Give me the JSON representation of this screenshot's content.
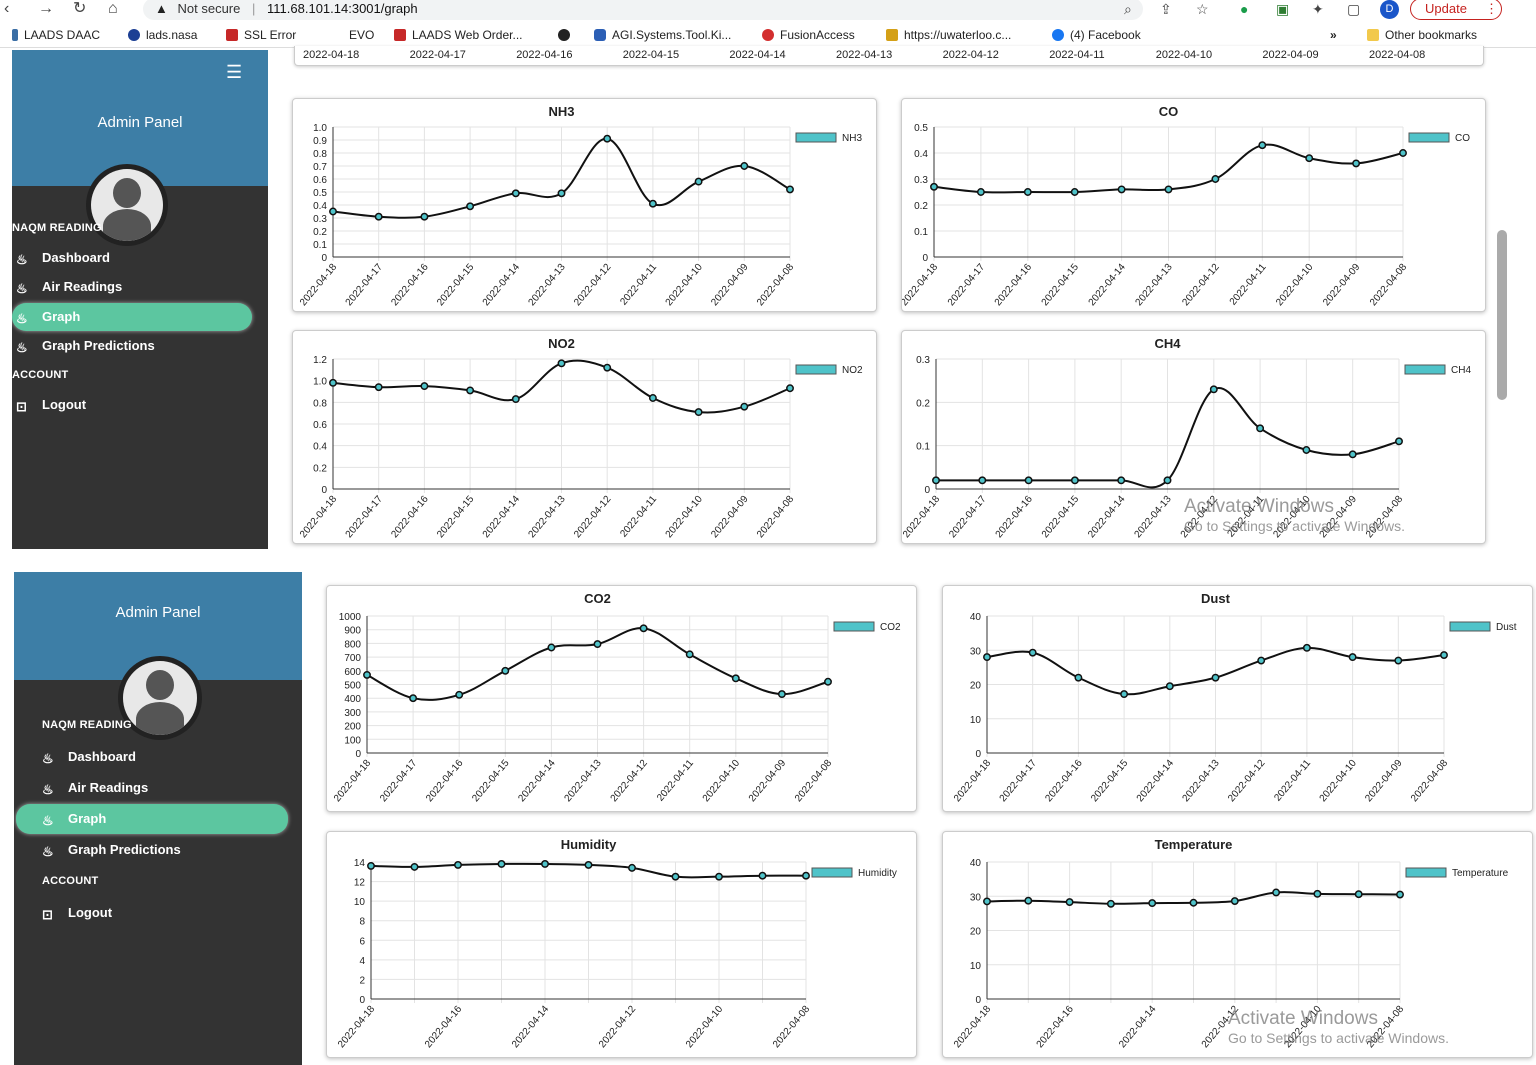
{
  "browser": {
    "security_label": "Not secure",
    "url": "111.68.101.14:3001/graph",
    "update_label": "Update",
    "profile_initial": "D",
    "bookmarks": [
      "LAADS DAAC",
      "lads.nasa",
      "SSL Error",
      "EVO",
      "LAADS Web Order...",
      "AGI.Systems.Tool.Ki...",
      "FusionAccess",
      "https://uwaterloo.c...",
      "(4) Facebook"
    ],
    "other_bookmarks": "Other bookmarks",
    "more_bookmarks": "»"
  },
  "sidebar": {
    "title": "Admin Panel",
    "section_naqm": "NAQM READING",
    "section_account": "ACCOUNT",
    "items": [
      "Dashboard",
      "Air Readings",
      "Graph",
      "Graph Predictions"
    ],
    "logout": "Logout",
    "active": "Graph"
  },
  "top_strip_dates": [
    "2022-04-18",
    "2022-04-17",
    "2022-04-16",
    "2022-04-15",
    "2022-04-14",
    "2022-04-13",
    "2022-04-12",
    "2022-04-11",
    "2022-04-10",
    "2022-04-09",
    "2022-04-08"
  ],
  "watermark": {
    "line1": "Activate Windows",
    "line2": "Go to Settings to activate Windows."
  },
  "colors": {
    "sidebar_bg": "#333333",
    "sidebar_header": "#3d7ea6",
    "active_pill": "#5cc6a0",
    "legend_swatch": "#4fc3c9"
  },
  "chart_data": [
    {
      "type": "line",
      "title": "NH3",
      "categories": [
        "2022-04-18",
        "2022-04-17",
        "2022-04-16",
        "2022-04-15",
        "2022-04-14",
        "2022-04-13",
        "2022-04-12",
        "2022-04-11",
        "2022-04-10",
        "2022-04-09",
        "2022-04-08"
      ],
      "series": [
        {
          "name": "NH3",
          "values": [
            0.35,
            0.31,
            0.31,
            0.39,
            0.49,
            0.49,
            0.91,
            0.41,
            0.58,
            0.7,
            0.52
          ]
        }
      ],
      "ylim": [
        0,
        1.0
      ],
      "yticks": [
        "0",
        "0.1",
        "0.2",
        "0.3",
        "0.4",
        "0.5",
        "0.6",
        "0.7",
        "0.8",
        "0.9",
        "1.0"
      ],
      "grid": true,
      "legend": "top-right"
    },
    {
      "type": "line",
      "title": "CO",
      "categories": [
        "2022-04-18",
        "2022-04-17",
        "2022-04-16",
        "2022-04-15",
        "2022-04-14",
        "2022-04-13",
        "2022-04-12",
        "2022-04-11",
        "2022-04-10",
        "2022-04-09",
        "2022-04-08"
      ],
      "series": [
        {
          "name": "CO",
          "values": [
            0.27,
            0.25,
            0.25,
            0.25,
            0.26,
            0.26,
            0.3,
            0.43,
            0.38,
            0.36,
            0.4
          ]
        }
      ],
      "ylim": [
        0,
        0.5
      ],
      "yticks": [
        "0",
        "0.1",
        "0.2",
        "0.3",
        "0.4",
        "0.5"
      ],
      "grid": true,
      "legend": "top-right"
    },
    {
      "type": "line",
      "title": "NO2",
      "categories": [
        "2022-04-18",
        "2022-04-17",
        "2022-04-16",
        "2022-04-15",
        "2022-04-14",
        "2022-04-13",
        "2022-04-12",
        "2022-04-11",
        "2022-04-10",
        "2022-04-09",
        "2022-04-08"
      ],
      "series": [
        {
          "name": "NO2",
          "values": [
            0.98,
            0.94,
            0.95,
            0.91,
            0.83,
            1.16,
            1.12,
            0.84,
            0.71,
            0.76,
            0.93
          ]
        }
      ],
      "ylim": [
        0,
        1.2
      ],
      "yticks": [
        "0",
        "0.2",
        "0.4",
        "0.6",
        "0.8",
        "1.0",
        "1.2"
      ],
      "grid": true,
      "legend": "top-right"
    },
    {
      "type": "line",
      "title": "CH4",
      "categories": [
        "2022-04-18",
        "2022-04-17",
        "2022-04-16",
        "2022-04-15",
        "2022-04-14",
        "2022-04-13",
        "2022-04-12",
        "2022-04-11",
        "2022-04-10",
        "2022-04-09",
        "2022-04-08"
      ],
      "series": [
        {
          "name": "CH4",
          "values": [
            0.02,
            0.02,
            0.02,
            0.02,
            0.02,
            0.02,
            0.23,
            0.14,
            0.09,
            0.08,
            0.11
          ]
        }
      ],
      "ylim": [
        0,
        0.3
      ],
      "yticks": [
        "0",
        "0.1",
        "0.2",
        "0.3"
      ],
      "grid": true,
      "legend": "top-right"
    },
    {
      "type": "line",
      "title": "CO2",
      "categories": [
        "2022-04-18",
        "2022-04-17",
        "2022-04-16",
        "2022-04-15",
        "2022-04-14",
        "2022-04-13",
        "2022-04-12",
        "2022-04-11",
        "2022-04-10",
        "2022-04-09",
        "2022-04-08"
      ],
      "series": [
        {
          "name": "CO2",
          "values": [
            570,
            400,
            425,
            600,
            770,
            795,
            910,
            720,
            545,
            430,
            520
          ]
        }
      ],
      "ylim": [
        0,
        1000
      ],
      "yticks": [
        "0",
        "100",
        "200",
        "300",
        "400",
        "500",
        "600",
        "700",
        "800",
        "900",
        "1000"
      ],
      "grid": true,
      "legend": "top-right"
    },
    {
      "type": "line",
      "title": "Dust",
      "categories": [
        "2022-04-18",
        "2022-04-17",
        "2022-04-16",
        "2022-04-15",
        "2022-04-14",
        "2022-04-13",
        "2022-04-12",
        "2022-04-11",
        "2022-04-10",
        "2022-04-09",
        "2022-04-08"
      ],
      "series": [
        {
          "name": "Dust",
          "values": [
            28,
            29.3,
            22,
            17.2,
            19.5,
            22,
            27,
            30.7,
            28,
            27,
            28.6
          ]
        }
      ],
      "ylim": [
        0,
        40
      ],
      "yticks": [
        "0",
        "10",
        "20",
        "30",
        "40"
      ],
      "grid": true,
      "legend": "top-right"
    },
    {
      "type": "line",
      "title": "Humidity",
      "categories": [
        "2022-04-18",
        "",
        "2022-04-16",
        "",
        "2022-04-14",
        "",
        "2022-04-12",
        "",
        "2022-04-10",
        "",
        "2022-04-08"
      ],
      "series": [
        {
          "name": "Humidity",
          "values": [
            13.6,
            13.5,
            13.7,
            13.8,
            13.8,
            13.7,
            13.4,
            12.5,
            12.5,
            12.6,
            12.6
          ]
        }
      ],
      "ylim": [
        0,
        14
      ],
      "yticks": [
        "0",
        "2",
        "4",
        "6",
        "8",
        "10",
        "12",
        "14"
      ],
      "grid": true,
      "legend": "top-right"
    },
    {
      "type": "line",
      "title": "Temperature",
      "categories": [
        "2022-04-18",
        "",
        "2022-04-16",
        "",
        "2022-04-14",
        "",
        "2022-04-12",
        "",
        "2022-04-10",
        "",
        "2022-04-08"
      ],
      "series": [
        {
          "name": "Temperature",
          "values": [
            28.5,
            28.7,
            28.3,
            27.8,
            28.0,
            28.1,
            28.6,
            31.1,
            30.7,
            30.6,
            30.5
          ]
        }
      ],
      "ylim": [
        0,
        40
      ],
      "yticks": [
        "0",
        "10",
        "20",
        "30",
        "40"
      ],
      "grid": true,
      "legend": "top-right"
    }
  ]
}
